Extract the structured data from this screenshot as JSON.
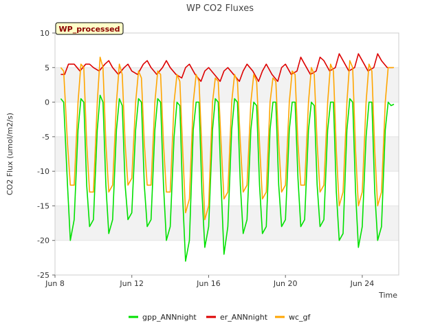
{
  "chart_data": {
    "type": "line",
    "title": "WP CO2 Fluxes",
    "xlabel": "Time",
    "ylabel": "CO2 Flux (umol/m2/s)",
    "badge": "WP_processed",
    "xlim": [
      8,
      25.9
    ],
    "ylim": [
      -25,
      10
    ],
    "x_unit": "day of June",
    "x_ticks": [
      8,
      12,
      16,
      20,
      24
    ],
    "x_tick_labels": [
      "Jun 8",
      "Jun 12",
      "Jun 16",
      "Jun 20",
      "Jun 24"
    ],
    "y_ticks": [
      10,
      5,
      0,
      -5,
      -10,
      -15,
      -20,
      -25
    ],
    "y_tick_labels": [
      "10",
      "5",
      "0",
      "-5",
      "-10",
      "-15",
      "-20",
      "-25"
    ],
    "grid": "horizontal bands",
    "legend_position": "bottom",
    "series": [
      {
        "name": "gpp_ANNnight",
        "color": "#00e000",
        "x": [
          8.3,
          8.45,
          8.65,
          8.8,
          9.0,
          9.2,
          9.35,
          9.5,
          9.65,
          9.8,
          10.0,
          10.2,
          10.35,
          10.5,
          10.65,
          10.8,
          11.0,
          11.2,
          11.35,
          11.5,
          11.65,
          11.8,
          12.0,
          12.2,
          12.35,
          12.5,
          12.65,
          12.8,
          13.0,
          13.2,
          13.35,
          13.5,
          13.65,
          13.8,
          14.0,
          14.2,
          14.35,
          14.5,
          14.65,
          14.8,
          15.0,
          15.2,
          15.35,
          15.5,
          15.65,
          15.8,
          16.0,
          16.2,
          16.35,
          16.5,
          16.65,
          16.8,
          17.0,
          17.2,
          17.35,
          17.5,
          17.65,
          17.8,
          18.0,
          18.2,
          18.35,
          18.5,
          18.65,
          18.8,
          19.0,
          19.2,
          19.35,
          19.5,
          19.65,
          19.8,
          20.0,
          20.2,
          20.35,
          20.5,
          20.65,
          20.8,
          21.0,
          21.2,
          21.35,
          21.5,
          21.65,
          21.8,
          22.0,
          22.2,
          22.35,
          22.5,
          22.65,
          22.8,
          23.0,
          23.2,
          23.35,
          23.5,
          23.65,
          23.8,
          24.0,
          24.2,
          24.35,
          24.5,
          24.65,
          24.8,
          25.0,
          25.2,
          25.35,
          25.5,
          25.65
        ],
        "values": [
          0.5,
          0.0,
          -12,
          -20,
          -17,
          -4,
          0.5,
          0.0,
          -12,
          -18,
          -17,
          -4,
          1.0,
          0.0,
          -12,
          -19,
          -17,
          -4,
          0.5,
          -0.5,
          -12,
          -17,
          -16,
          -4,
          0.5,
          0.0,
          -12,
          -18,
          -17,
          -4,
          0.5,
          0.0,
          -12,
          -20,
          -18,
          -5,
          0.0,
          -0.5,
          -14,
          -23,
          -20,
          -4,
          0.0,
          0.0,
          -13,
          -21,
          -18,
          -4,
          0.5,
          0.0,
          -12,
          -22,
          -18,
          -4,
          0.5,
          0.0,
          -12,
          -19,
          -17,
          -4,
          0.0,
          -0.5,
          -12,
          -19,
          -18,
          -4,
          0.0,
          0.0,
          -12,
          -18,
          -17,
          -4,
          0.0,
          0.0,
          -11,
          -18,
          -17,
          -4,
          0.0,
          -0.5,
          -12,
          -18,
          -17,
          -4,
          0.0,
          0.0,
          -13,
          -20,
          -19,
          -4,
          0.5,
          0.0,
          -13,
          -21,
          -18,
          -5,
          0.0,
          0.0,
          -13,
          -20,
          -18,
          -4,
          0.0,
          -0.5,
          -0.3
        ]
      },
      {
        "name": "er_ANNnight",
        "color": "#dd0000",
        "x": [
          8.3,
          8.5,
          8.7,
          9.0,
          9.3,
          9.6,
          9.8,
          10.0,
          10.3,
          10.6,
          10.8,
          11.0,
          11.3,
          11.6,
          11.8,
          12.0,
          12.3,
          12.6,
          12.8,
          13.0,
          13.3,
          13.6,
          13.8,
          14.0,
          14.3,
          14.6,
          14.8,
          15.0,
          15.3,
          15.6,
          15.8,
          16.0,
          16.3,
          16.6,
          16.8,
          17.0,
          17.3,
          17.6,
          17.8,
          18.0,
          18.3,
          18.6,
          18.8,
          19.0,
          19.3,
          19.6,
          19.8,
          20.0,
          20.3,
          20.6,
          20.8,
          21.0,
          21.3,
          21.6,
          21.8,
          22.0,
          22.3,
          22.6,
          22.8,
          23.0,
          23.3,
          23.6,
          23.8,
          24.0,
          24.3,
          24.6,
          24.8,
          25.0,
          25.3,
          25.6
        ],
        "values": [
          4.0,
          4.0,
          5.5,
          5.5,
          4.5,
          5.5,
          5.5,
          5.0,
          4.5,
          5.5,
          6.0,
          5.0,
          4.0,
          5.0,
          5.5,
          4.5,
          4.0,
          5.5,
          6.0,
          5.0,
          4.0,
          5.0,
          6.0,
          5.0,
          4.0,
          3.5,
          5.0,
          5.5,
          4.0,
          3.0,
          4.5,
          5.0,
          4.0,
          3.0,
          4.5,
          5.0,
          4.0,
          3.0,
          4.5,
          5.5,
          4.5,
          3.0,
          4.5,
          5.5,
          4.0,
          3.0,
          5.0,
          5.5,
          4.0,
          4.5,
          6.5,
          5.5,
          4.0,
          4.5,
          6.5,
          6.0,
          4.5,
          5.0,
          7.0,
          6.0,
          4.5,
          5.0,
          7.0,
          6.0,
          4.5,
          5.0,
          7.0,
          6.0,
          5.0,
          5.0
        ]
      },
      {
        "name": "wc_gf",
        "color": "#ffa500",
        "x": [
          8.3,
          8.45,
          8.65,
          8.8,
          9.0,
          9.2,
          9.35,
          9.5,
          9.65,
          9.8,
          10.0,
          10.2,
          10.35,
          10.5,
          10.65,
          10.8,
          11.0,
          11.2,
          11.35,
          11.5,
          11.65,
          11.8,
          12.0,
          12.2,
          12.35,
          12.5,
          12.65,
          12.8,
          13.0,
          13.2,
          13.35,
          13.5,
          13.65,
          13.8,
          14.0,
          14.2,
          14.35,
          14.5,
          14.65,
          14.8,
          15.0,
          15.2,
          15.35,
          15.5,
          15.65,
          15.8,
          16.0,
          16.2,
          16.35,
          16.5,
          16.65,
          16.8,
          17.0,
          17.2,
          17.35,
          17.5,
          17.65,
          17.8,
          18.0,
          18.2,
          18.35,
          18.5,
          18.65,
          18.8,
          19.0,
          19.2,
          19.35,
          19.5,
          19.65,
          19.8,
          20.0,
          20.2,
          20.35,
          20.5,
          20.65,
          20.8,
          21.0,
          21.2,
          21.35,
          21.5,
          21.65,
          21.8,
          22.0,
          22.2,
          22.35,
          22.5,
          22.65,
          22.8,
          23.0,
          23.2,
          23.35,
          23.5,
          23.65,
          23.8,
          24.0,
          24.2,
          24.35,
          24.5,
          24.65,
          24.8,
          25.0,
          25.2,
          25.35,
          25.5,
          25.65
        ],
        "values": [
          5.0,
          4.5,
          -6,
          -12,
          -12,
          0,
          5.5,
          5.0,
          -6,
          -13,
          -13,
          0,
          6.5,
          5.0,
          -6,
          -13,
          -12,
          0,
          5.5,
          4.0,
          -6,
          -12,
          -11,
          0,
          4.5,
          3.5,
          -6,
          -12,
          -12,
          0,
          4.5,
          4.0,
          -6,
          -13,
          -13,
          0,
          4.0,
          3.0,
          -7,
          -16,
          -14,
          0,
          4.0,
          3.0,
          -7,
          -17,
          -15,
          0,
          3.5,
          3.0,
          -6,
          -14,
          -13,
          0,
          4.0,
          3.0,
          -6,
          -13,
          -12,
          0,
          4.0,
          3.0,
          -6,
          -14,
          -13,
          0,
          3.5,
          3.0,
          -6,
          -13,
          -12,
          0,
          4.5,
          4.0,
          -6,
          -12,
          -12,
          0,
          5.0,
          4.0,
          -6,
          -13,
          -12,
          0,
          5.5,
          4.5,
          -7,
          -15,
          -13,
          0,
          6.0,
          5.0,
          -7,
          -15,
          -13,
          0,
          5.5,
          4.5,
          -7,
          -15,
          -13,
          0,
          5.0,
          5.0,
          5.0
        ]
      }
    ]
  }
}
